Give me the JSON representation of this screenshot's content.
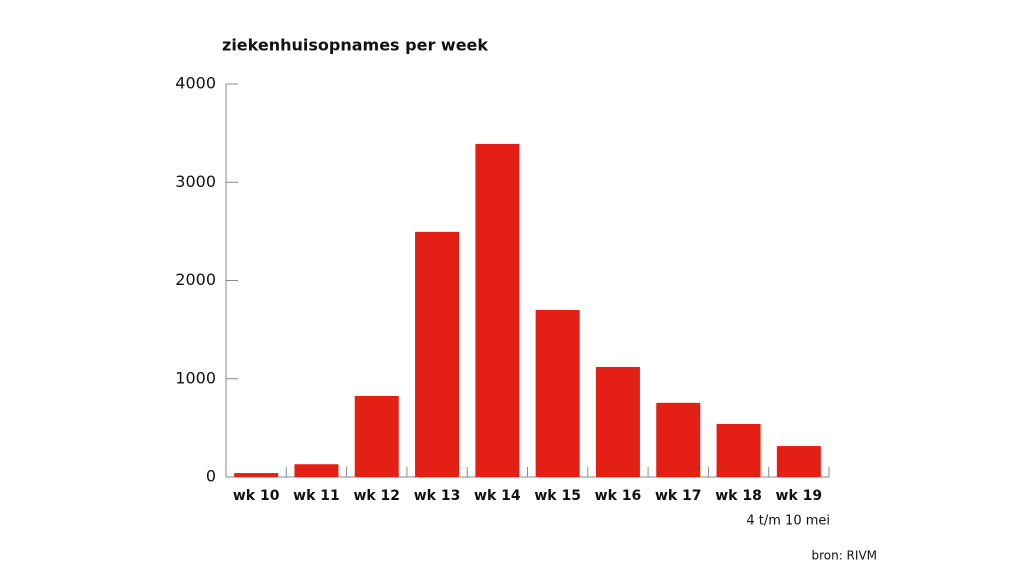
{
  "chart_data": {
    "type": "bar",
    "title": "ziekenhuisopnames per week",
    "categories": [
      "wk 10",
      "wk 11",
      "wk 12",
      "wk 13",
      "wk 14",
      "wk 15",
      "wk 16",
      "wk 17",
      "wk 18",
      "wk 19"
    ],
    "values": [
      40,
      130,
      825,
      2495,
      3390,
      1700,
      1120,
      755,
      540,
      315
    ],
    "color": "#e41f15",
    "ylim": [
      0,
      4000
    ],
    "yticks": [
      0,
      1000,
      2000,
      3000,
      4000
    ],
    "grid": false,
    "annotation": "4 t/m 10 mei",
    "source": "bron: RIVM"
  }
}
